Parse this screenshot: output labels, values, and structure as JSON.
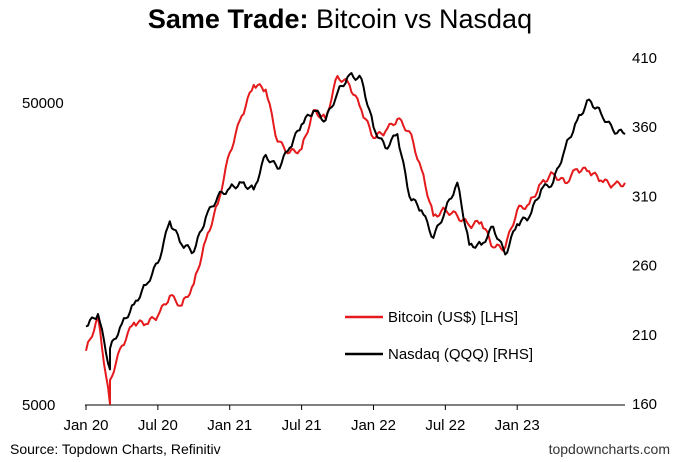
{
  "title": {
    "bold": "Same Trade:",
    "rest": "Bitcoin vs Nasdaq"
  },
  "source": "Source: Topdown Charts, Refinitiv",
  "credit": "topdowncharts.com",
  "chart_data": {
    "type": "line",
    "x_tick_labels": [
      "Jan 20",
      "Jul 20",
      "Jan 21",
      "Jul 21",
      "Jan 22",
      "Jul 22",
      "Jan 23"
    ],
    "x_range": [
      "2020-01",
      "2023-10"
    ],
    "left_axis": {
      "scale": "log",
      "range": [
        5000,
        70000
      ],
      "tick_labels": [
        "5000",
        "50000"
      ],
      "ticks": [
        5000,
        50000
      ]
    },
    "right_axis": {
      "scale": "linear",
      "range": [
        160,
        410
      ],
      "tick_labels": [
        "410",
        "360",
        "310",
        "260",
        "210",
        "160"
      ],
      "ticks": [
        410,
        360,
        310,
        260,
        210,
        160
      ]
    },
    "legend_position": "lower-right",
    "colors": {
      "bitcoin": "#e41a1c",
      "nasdaq": "#000000"
    },
    "series": [
      {
        "name": "Bitcoin (US$) [LHS]",
        "axis": "left",
        "color": "#e41a1c",
        "x": [
          "2020-01",
          "2020-02",
          "2020-03",
          "2020-03",
          "2020-04",
          "2020-05",
          "2020-06",
          "2020-07",
          "2020-08",
          "2020-09",
          "2020-10",
          "2020-11",
          "2020-12",
          "2021-01",
          "2021-02",
          "2021-03",
          "2021-04",
          "2021-05",
          "2021-06",
          "2021-07",
          "2021-08",
          "2021-09",
          "2021-10",
          "2021-11",
          "2021-12",
          "2022-01",
          "2022-02",
          "2022-03",
          "2022-04",
          "2022-05",
          "2022-06",
          "2022-07",
          "2022-08",
          "2022-09",
          "2022-10",
          "2022-11",
          "2022-12",
          "2023-01",
          "2023-02",
          "2023-03",
          "2023-04",
          "2023-05",
          "2023-06",
          "2023-07",
          "2023-08",
          "2023-09",
          "2023-10"
        ],
        "y": [
          7500,
          9700,
          5000,
          6000,
          7800,
          9300,
          9200,
          9800,
          11400,
          10600,
          12500,
          17500,
          23000,
          34000,
          45000,
          57000,
          55000,
          37000,
          34000,
          35000,
          47000,
          44000,
          61000,
          57000,
          47000,
          38000,
          40000,
          44000,
          40000,
          30000,
          21000,
          22000,
          21000,
          19500,
          20000,
          16500,
          16500,
          22000,
          23000,
          27000,
          29000,
          27000,
          30000,
          29500,
          27500,
          26500,
          27000
        ]
      },
      {
        "name": "Nasdaq (QQQ) [RHS]",
        "axis": "right",
        "color": "#000000",
        "x": [
          "2020-01",
          "2020-02",
          "2020-03",
          "2020-03",
          "2020-04",
          "2020-05",
          "2020-06",
          "2020-07",
          "2020-08",
          "2020-09",
          "2020-10",
          "2020-11",
          "2020-12",
          "2021-01",
          "2021-02",
          "2021-03",
          "2021-04",
          "2021-05",
          "2021-06",
          "2021-07",
          "2021-08",
          "2021-09",
          "2021-10",
          "2021-11",
          "2021-12",
          "2022-01",
          "2022-02",
          "2022-03",
          "2022-04",
          "2022-05",
          "2022-06",
          "2022-07",
          "2022-08",
          "2022-09",
          "2022-10",
          "2022-11",
          "2022-12",
          "2023-01",
          "2023-02",
          "2023-03",
          "2023-04",
          "2023-05",
          "2023-06",
          "2023-07",
          "2023-08",
          "2023-09",
          "2023-10"
        ],
        "y": [
          216,
          225,
          185,
          200,
          218,
          232,
          246,
          262,
          292,
          275,
          270,
          295,
          310,
          316,
          320,
          315,
          340,
          330,
          345,
          362,
          372,
          365,
          385,
          398,
          395,
          360,
          345,
          355,
          310,
          300,
          280,
          300,
          320,
          275,
          275,
          288,
          268,
          290,
          295,
          315,
          320,
          345,
          365,
          380,
          370,
          358,
          355
        ]
      }
    ]
  }
}
